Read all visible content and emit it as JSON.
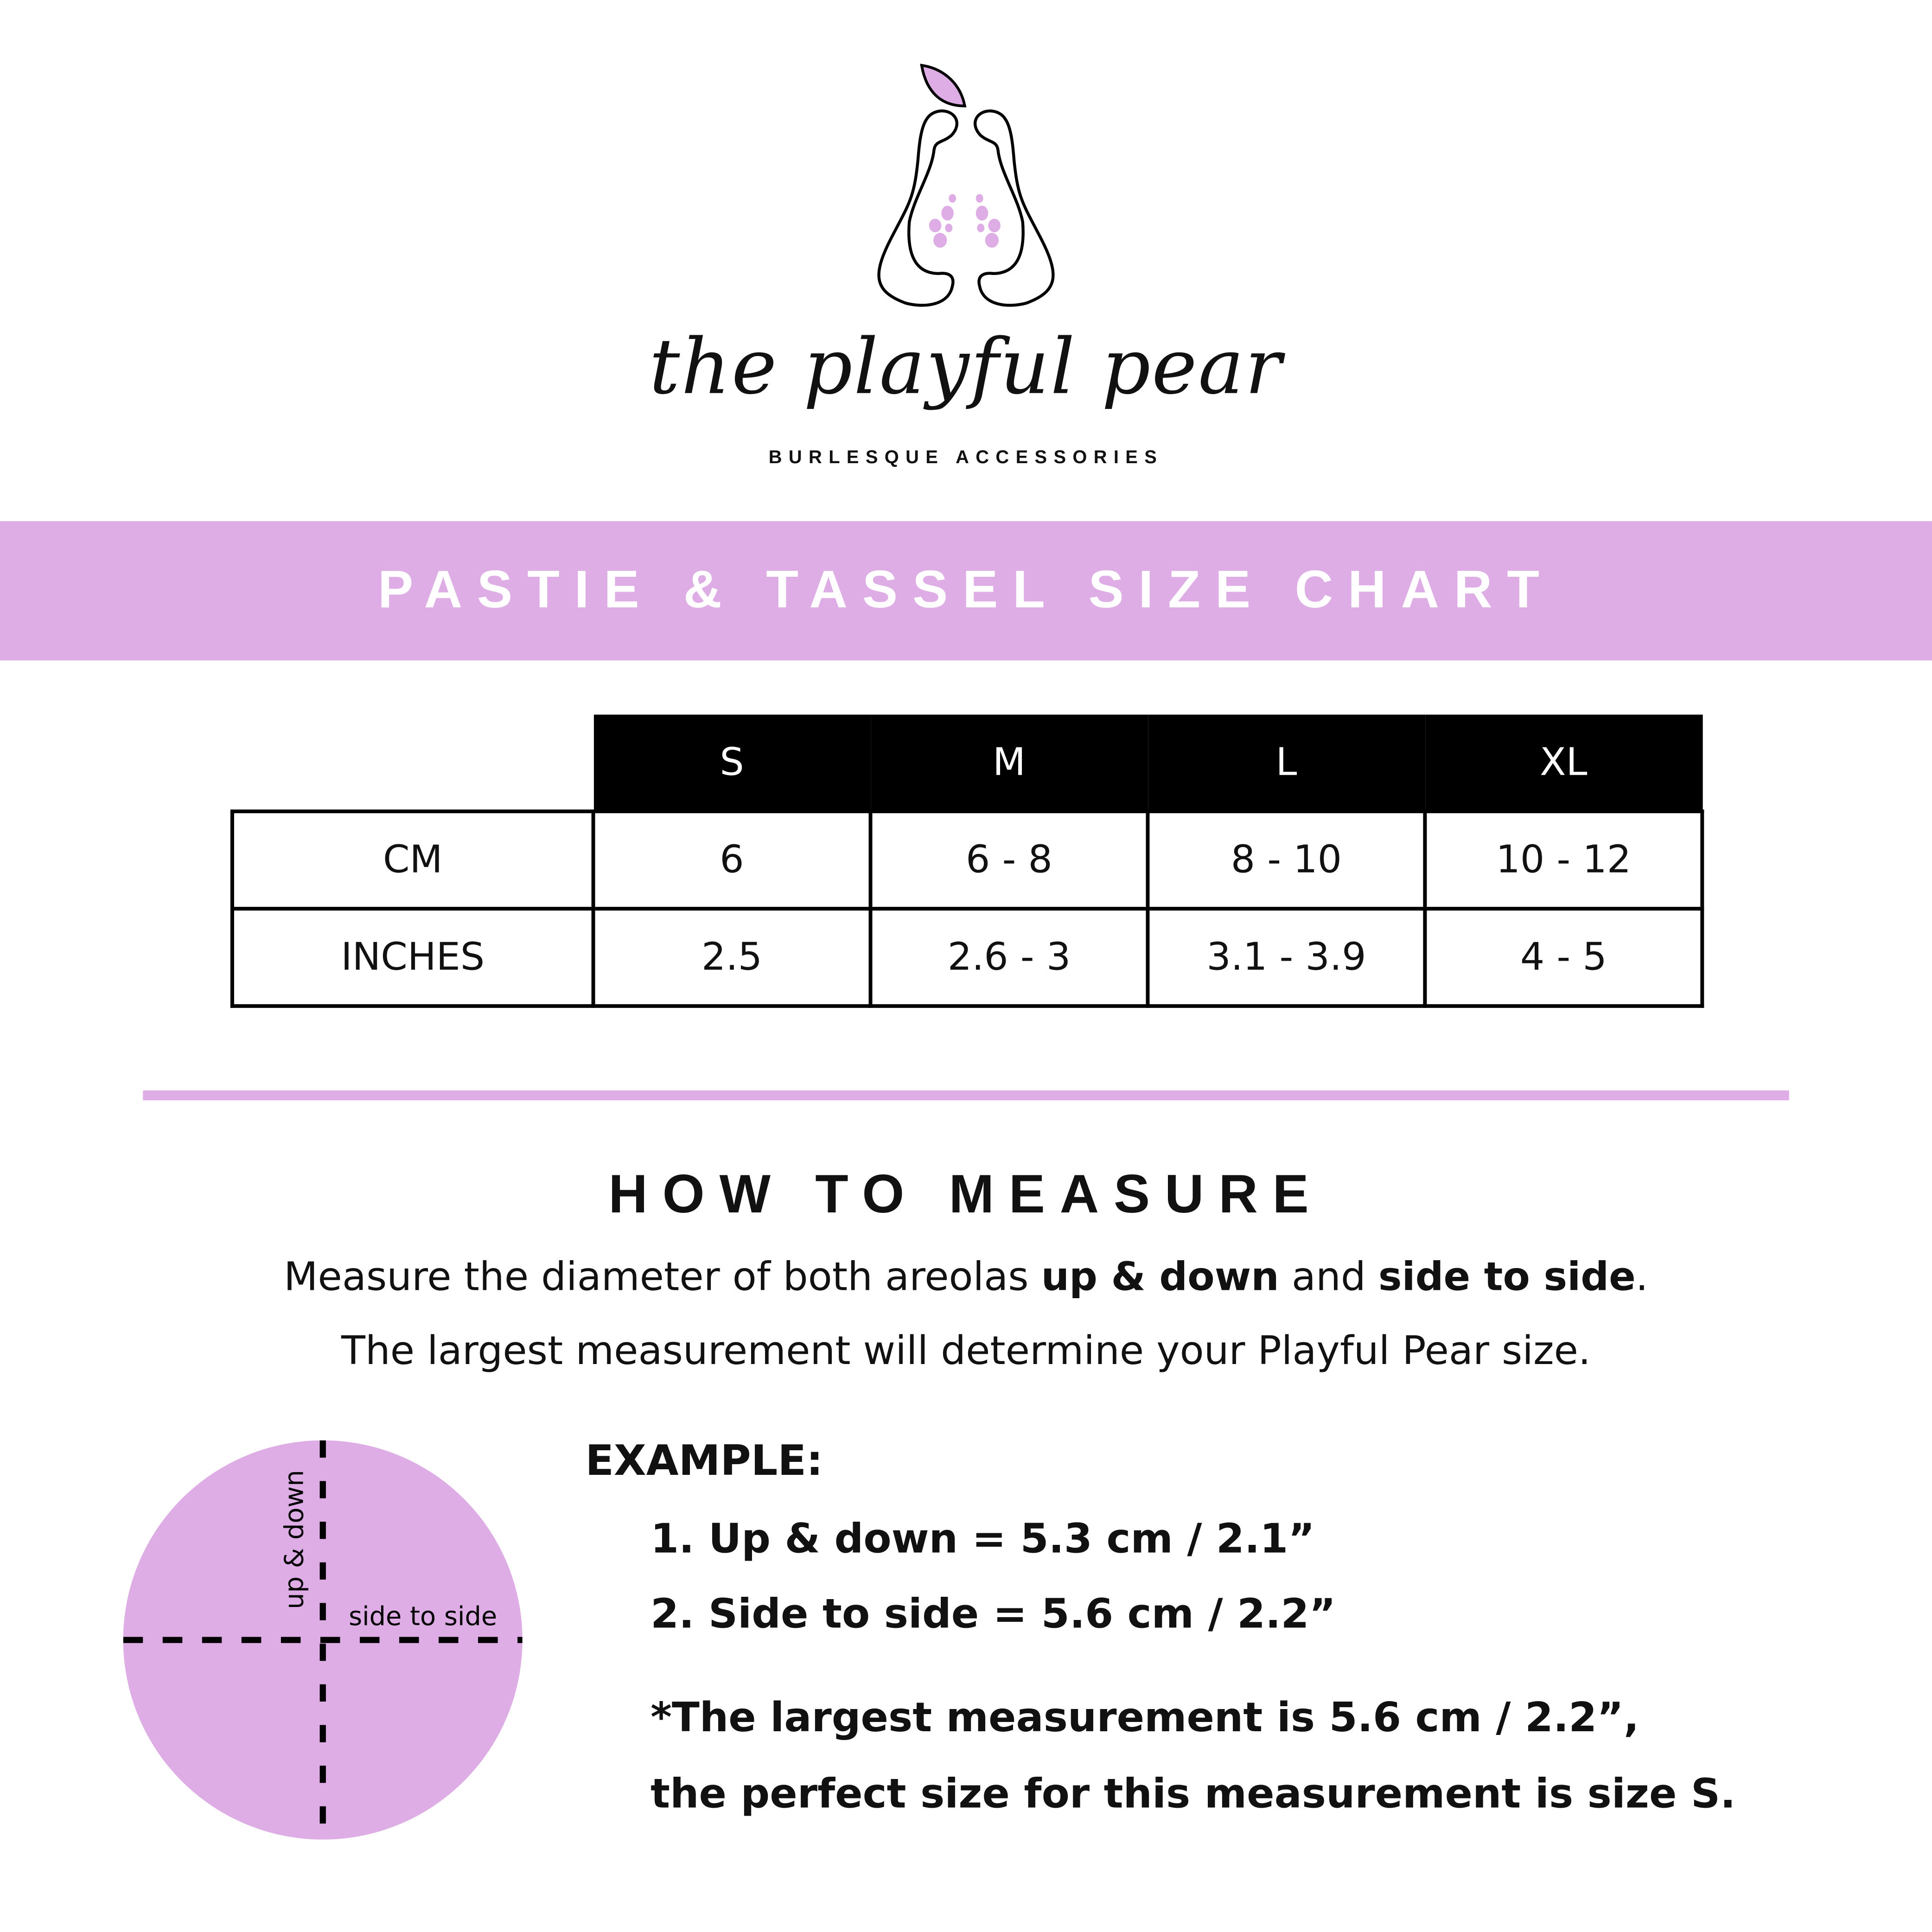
{
  "brand": {
    "name": "the playful pear",
    "tagline": "BURLESQUE ACCESSORIES",
    "logo_icon": "pear-icon",
    "accent_color": "#DEADE6"
  },
  "banner": {
    "title": "PASTIE & TASSEL SIZE CHART"
  },
  "size_table": {
    "columns": [
      "S",
      "M",
      "L",
      "XL"
    ],
    "rows": [
      {
        "label": "CM",
        "values": [
          "6",
          "6 - 8",
          "8 - 10",
          "10 - 12"
        ]
      },
      {
        "label": "INCHES",
        "values": [
          "2.5",
          "2.6 - 3",
          "3.1 - 3.9",
          "4 - 5"
        ]
      }
    ]
  },
  "measure": {
    "heading": "HOW TO MEASURE",
    "line1_a": "Measure the diameter of both areolas ",
    "line1_b": "up & down",
    "line1_c": " and ",
    "line1_d": "side to side",
    "line1_e": ".",
    "line2": "The largest measurement will determine your Playful Pear size.",
    "diagram": {
      "vertical_label": "up & down",
      "horizontal_label": "side to side"
    },
    "example_label": "EXAMPLE:",
    "example_items": [
      "1. Up & down = 5.3 cm / 2.1”",
      "2. Side to side = 5.6 cm / 2.2”"
    ],
    "note_line1": "*The largest measurement is 5.6 cm / 2.2”,",
    "note_line2": "the perfect size for this measurement is size S."
  }
}
